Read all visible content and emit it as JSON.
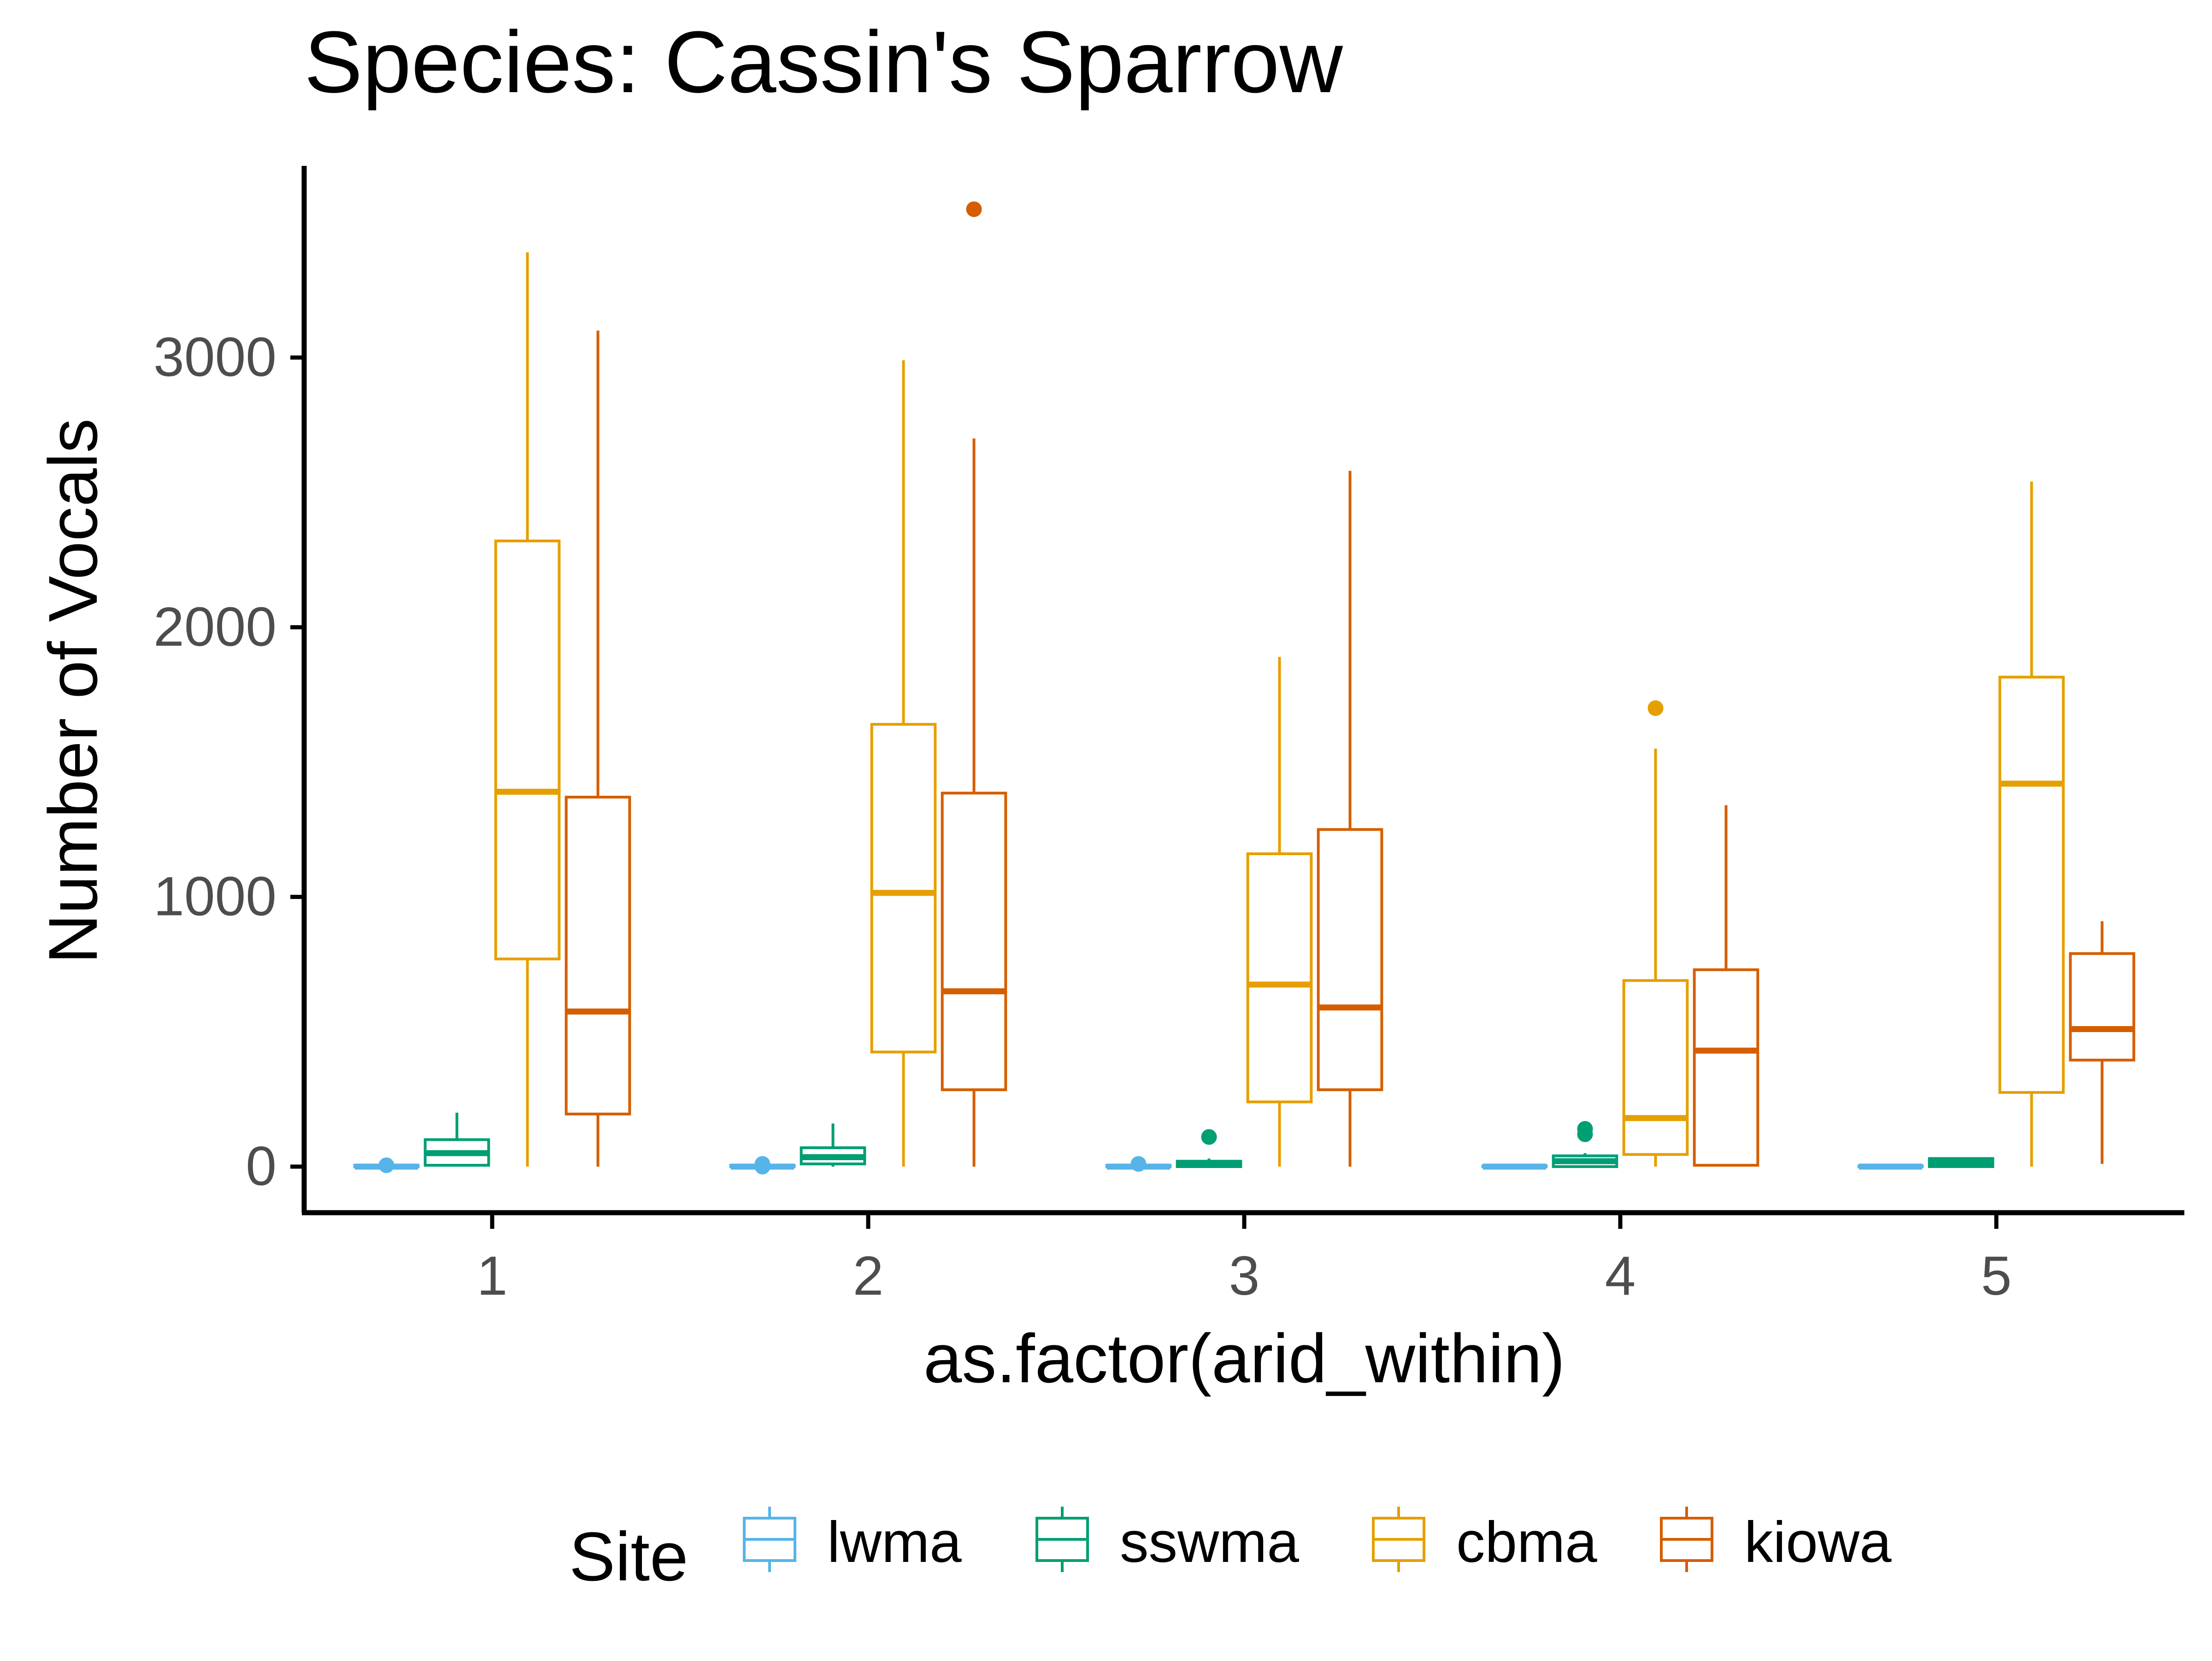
{
  "chart_data": {
    "type": "boxplot",
    "title": "Species: Cassin's Sparrow",
    "xlabel": "as.factor(arid_within)",
    "ylabel": "Number of Vocals",
    "categories": [
      "1",
      "2",
      "3",
      "4",
      "5"
    ],
    "yticks": [
      0,
      1000,
      2000,
      3000
    ],
    "ylim": [
      -175,
      3720
    ],
    "legend": {
      "title": "Site",
      "position": "bottom",
      "entries": [
        "lwma",
        "sswma",
        "cbma",
        "kiowa"
      ]
    },
    "colors": {
      "lwma": "#56B4E9",
      "sswma": "#009E73",
      "cbma": "#E69F00",
      "kiowa": "#D55E00",
      "axis": "#000000",
      "tick_label": "#4d4d4d"
    },
    "series": [
      {
        "name": "lwma",
        "boxes": [
          {
            "category": "1",
            "min": 0,
            "q1": 0,
            "median": 0,
            "q3": 5,
            "max": 10,
            "outliers": [
              5
            ]
          },
          {
            "category": "2",
            "min": 0,
            "q1": 0,
            "median": 0,
            "q3": 5,
            "max": 10,
            "outliers": [
              10,
              0
            ]
          },
          {
            "category": "3",
            "min": 0,
            "q1": 0,
            "median": 0,
            "q3": 5,
            "max": 10,
            "outliers": [
              10
            ]
          },
          {
            "category": "4",
            "min": 0,
            "q1": 0,
            "median": 0,
            "q3": 3,
            "max": 5,
            "outliers": []
          },
          {
            "category": "5",
            "min": 0,
            "q1": 0,
            "median": 0,
            "q3": 3,
            "max": 5,
            "outliers": []
          }
        ]
      },
      {
        "name": "sswma",
        "boxes": [
          {
            "category": "1",
            "min": 0,
            "q1": 5,
            "median": 50,
            "q3": 100,
            "max": 200,
            "outliers": []
          },
          {
            "category": "2",
            "min": 0,
            "q1": 10,
            "median": 35,
            "q3": 70,
            "max": 160,
            "outliers": []
          },
          {
            "category": "3",
            "min": 0,
            "q1": 0,
            "median": 10,
            "q3": 20,
            "max": 30,
            "outliers": [
              110
            ]
          },
          {
            "category": "4",
            "min": 0,
            "q1": 0,
            "median": 20,
            "q3": 40,
            "max": 50,
            "outliers": [
              120,
              140
            ]
          },
          {
            "category": "5",
            "min": 0,
            "q1": 0,
            "median": 15,
            "q3": 30,
            "max": 35,
            "outliers": []
          }
        ]
      },
      {
        "name": "cbma",
        "boxes": [
          {
            "category": "1",
            "min": 0,
            "q1": 770,
            "median": 1390,
            "q3": 2320,
            "max": 3390,
            "outliers": []
          },
          {
            "category": "2",
            "min": 0,
            "q1": 425,
            "median": 1015,
            "q3": 1640,
            "max": 2990,
            "outliers": []
          },
          {
            "category": "3",
            "min": 0,
            "q1": 240,
            "median": 675,
            "q3": 1160,
            "max": 1890,
            "outliers": []
          },
          {
            "category": "4",
            "min": 0,
            "q1": 45,
            "median": 180,
            "q3": 690,
            "max": 1550,
            "outliers": [
              1700
            ]
          },
          {
            "category": "5",
            "min": 0,
            "q1": 275,
            "median": 1420,
            "q3": 1815,
            "max": 2540,
            "outliers": []
          }
        ]
      },
      {
        "name": "kiowa",
        "boxes": [
          {
            "category": "1",
            "min": 0,
            "q1": 195,
            "median": 575,
            "q3": 1370,
            "max": 3100,
            "outliers": []
          },
          {
            "category": "2",
            "min": 0,
            "q1": 285,
            "median": 650,
            "q3": 1385,
            "max": 2700,
            "outliers": [
              3550
            ]
          },
          {
            "category": "3",
            "min": 0,
            "q1": 285,
            "median": 590,
            "q3": 1250,
            "max": 2580,
            "outliers": []
          },
          {
            "category": "4",
            "min": 0,
            "q1": 5,
            "median": 430,
            "q3": 730,
            "max": 1340,
            "outliers": []
          },
          {
            "category": "5",
            "min": 10,
            "q1": 395,
            "median": 510,
            "q3": 790,
            "max": 910,
            "outliers": []
          }
        ]
      }
    ]
  }
}
